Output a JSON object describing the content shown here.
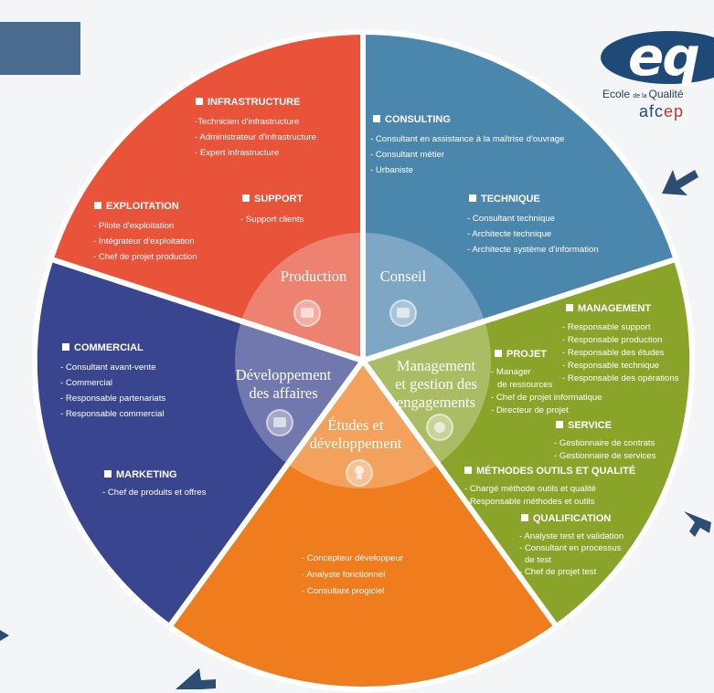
{
  "logo": {
    "mark": "eq",
    "line1_a": "Ecole ",
    "line1_b": "de la ",
    "line1_c": "Qualité",
    "line2_a": "afc",
    "line2_b": "ep"
  },
  "centers": {
    "production": "Production",
    "conseil": "Conseil",
    "management": [
      "Management",
      "et gestion des",
      "engagements"
    ],
    "etudes": [
      "Études et",
      "développement"
    ],
    "developpement": [
      "Développement",
      "des affaires"
    ]
  },
  "sections": {
    "infrastructure": {
      "title": "INFRASTRUCTURE",
      "items": [
        "-Technicien d'infrastructure",
        "- Administrateur d'infrastructure",
        "- Expert infrastructure"
      ]
    },
    "exploitation": {
      "title": "EXPLOITATION",
      "items": [
        "- Pilote d'exploitation",
        "- Intégrateur d'exploitation",
        "- Chef de projet production"
      ]
    },
    "support": {
      "title": "SUPPORT",
      "items": [
        "- Support clients"
      ]
    },
    "consulting": {
      "title": "CONSULTING",
      "items": [
        "- Consultant en assistance  à la maîtrise d'ouvrage",
        "- Consultant métier",
        "- Urbaniste"
      ]
    },
    "technique": {
      "title": "TECHNIQUE",
      "items": [
        "- Consultant technique",
        "- Architecte technique",
        "- Architecte système d'information"
      ]
    },
    "management": {
      "title": "MANAGEMENT",
      "items": [
        "- Responsable support",
        "- Responsable production",
        "- Responsable des études",
        "- Responsable technique",
        "- Responsable des opérations"
      ]
    },
    "projet": {
      "title": "PROJET",
      "items": [
        "- Manager",
        "de ressources",
        "- Chef de projet informatique",
        "- Directeur de projet"
      ]
    },
    "service": {
      "title": "SERVICE",
      "items": [
        "- Gestionnaire de contrats",
        "- Gestionnaire de services"
      ]
    },
    "methodes": {
      "title": "MÉTHODES OUTILS ET QUALITÉ",
      "items": [
        "- Chargé méthode outils et qualité",
        "- Responsable méthodes et outils"
      ]
    },
    "qualification": {
      "title": "QUALIFICATION",
      "items": [
        "- Analyste test et validation",
        "- Consultant en processus",
        "de test",
        "- Chef de projet test"
      ]
    },
    "commercial": {
      "title": "COMMERCIAL",
      "items": [
        "- Consultant avant-vente",
        "- Commercial",
        "- Responsable partenariats",
        "- Responsable commercial"
      ]
    },
    "marketing": {
      "title": "MARKETING",
      "items": [
        "- Chef de produits et offres"
      ]
    },
    "etudes": {
      "title": "",
      "items": [
        "- Concepteur développeur",
        "- Analyste fonctionnel",
        "- Consultant progiciel"
      ]
    }
  },
  "colors": {
    "production": "#e8533a",
    "conseil": "#4b86ad",
    "management": "#8aa329",
    "etudes": "#ef7d1e",
    "developpement": "#39458f",
    "background": "#f4f5f7"
  }
}
